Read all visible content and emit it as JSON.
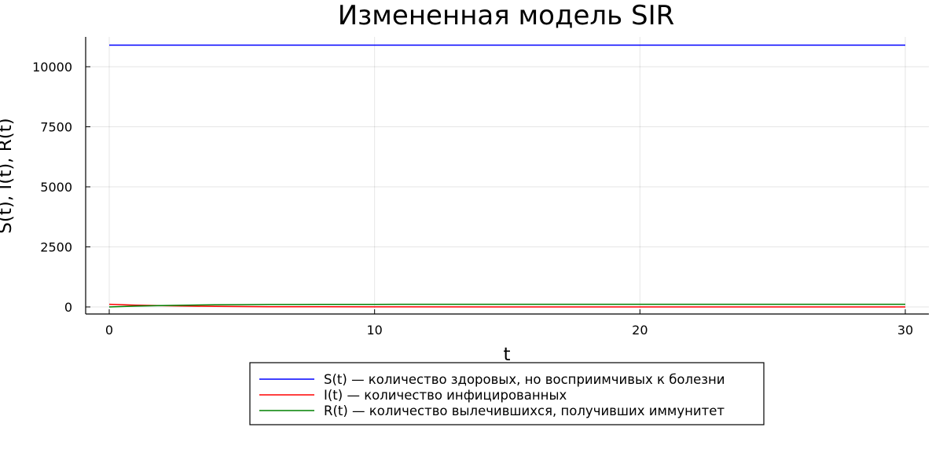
{
  "chart_data": {
    "type": "line",
    "title": "Измененная модель SIR",
    "xlabel": "t",
    "ylabel": "S(t), I(t), R(t)",
    "xlim": [
      0,
      30
    ],
    "ylim": [
      0,
      11000
    ],
    "xticks": [
      0,
      10,
      20,
      30
    ],
    "yticks": [
      0,
      2500,
      5000,
      7500,
      10000
    ],
    "xtick_labels": [
      "0",
      "10",
      "20",
      "30"
    ],
    "ytick_labels": [
      "0",
      "2500",
      "5000",
      "7500",
      "10000"
    ],
    "grid": true,
    "legend_position": "bottom-outside",
    "series": [
      {
        "name": "S(t) — количество здоровых, но восприимчивых к болезни",
        "color": "#0000ff",
        "x": [
          0,
          5,
          10,
          15,
          20,
          25,
          30
        ],
        "values": [
          10900,
          10900,
          10900,
          10900,
          10900,
          10900,
          10900
        ]
      },
      {
        "name": "I(t) — количество инфицированных",
        "color": "#ff0000",
        "x": [
          0,
          1,
          2,
          3,
          4,
          5,
          6,
          8,
          10,
          15,
          20,
          25,
          30
        ],
        "values": [
          111,
          75,
          51,
          35,
          24,
          16,
          11,
          5,
          2,
          0,
          0,
          0,
          0
        ]
      },
      {
        "name": "R(t) — количество вылечившихся, получивших иммунитет",
        "color": "#008000",
        "x": [
          0,
          1,
          2,
          3,
          4,
          5,
          6,
          8,
          10,
          15,
          20,
          25,
          30
        ],
        "values": [
          0,
          36,
          60,
          76,
          87,
          95,
          100,
          106,
          109,
          111,
          111,
          111,
          111
        ]
      }
    ]
  }
}
